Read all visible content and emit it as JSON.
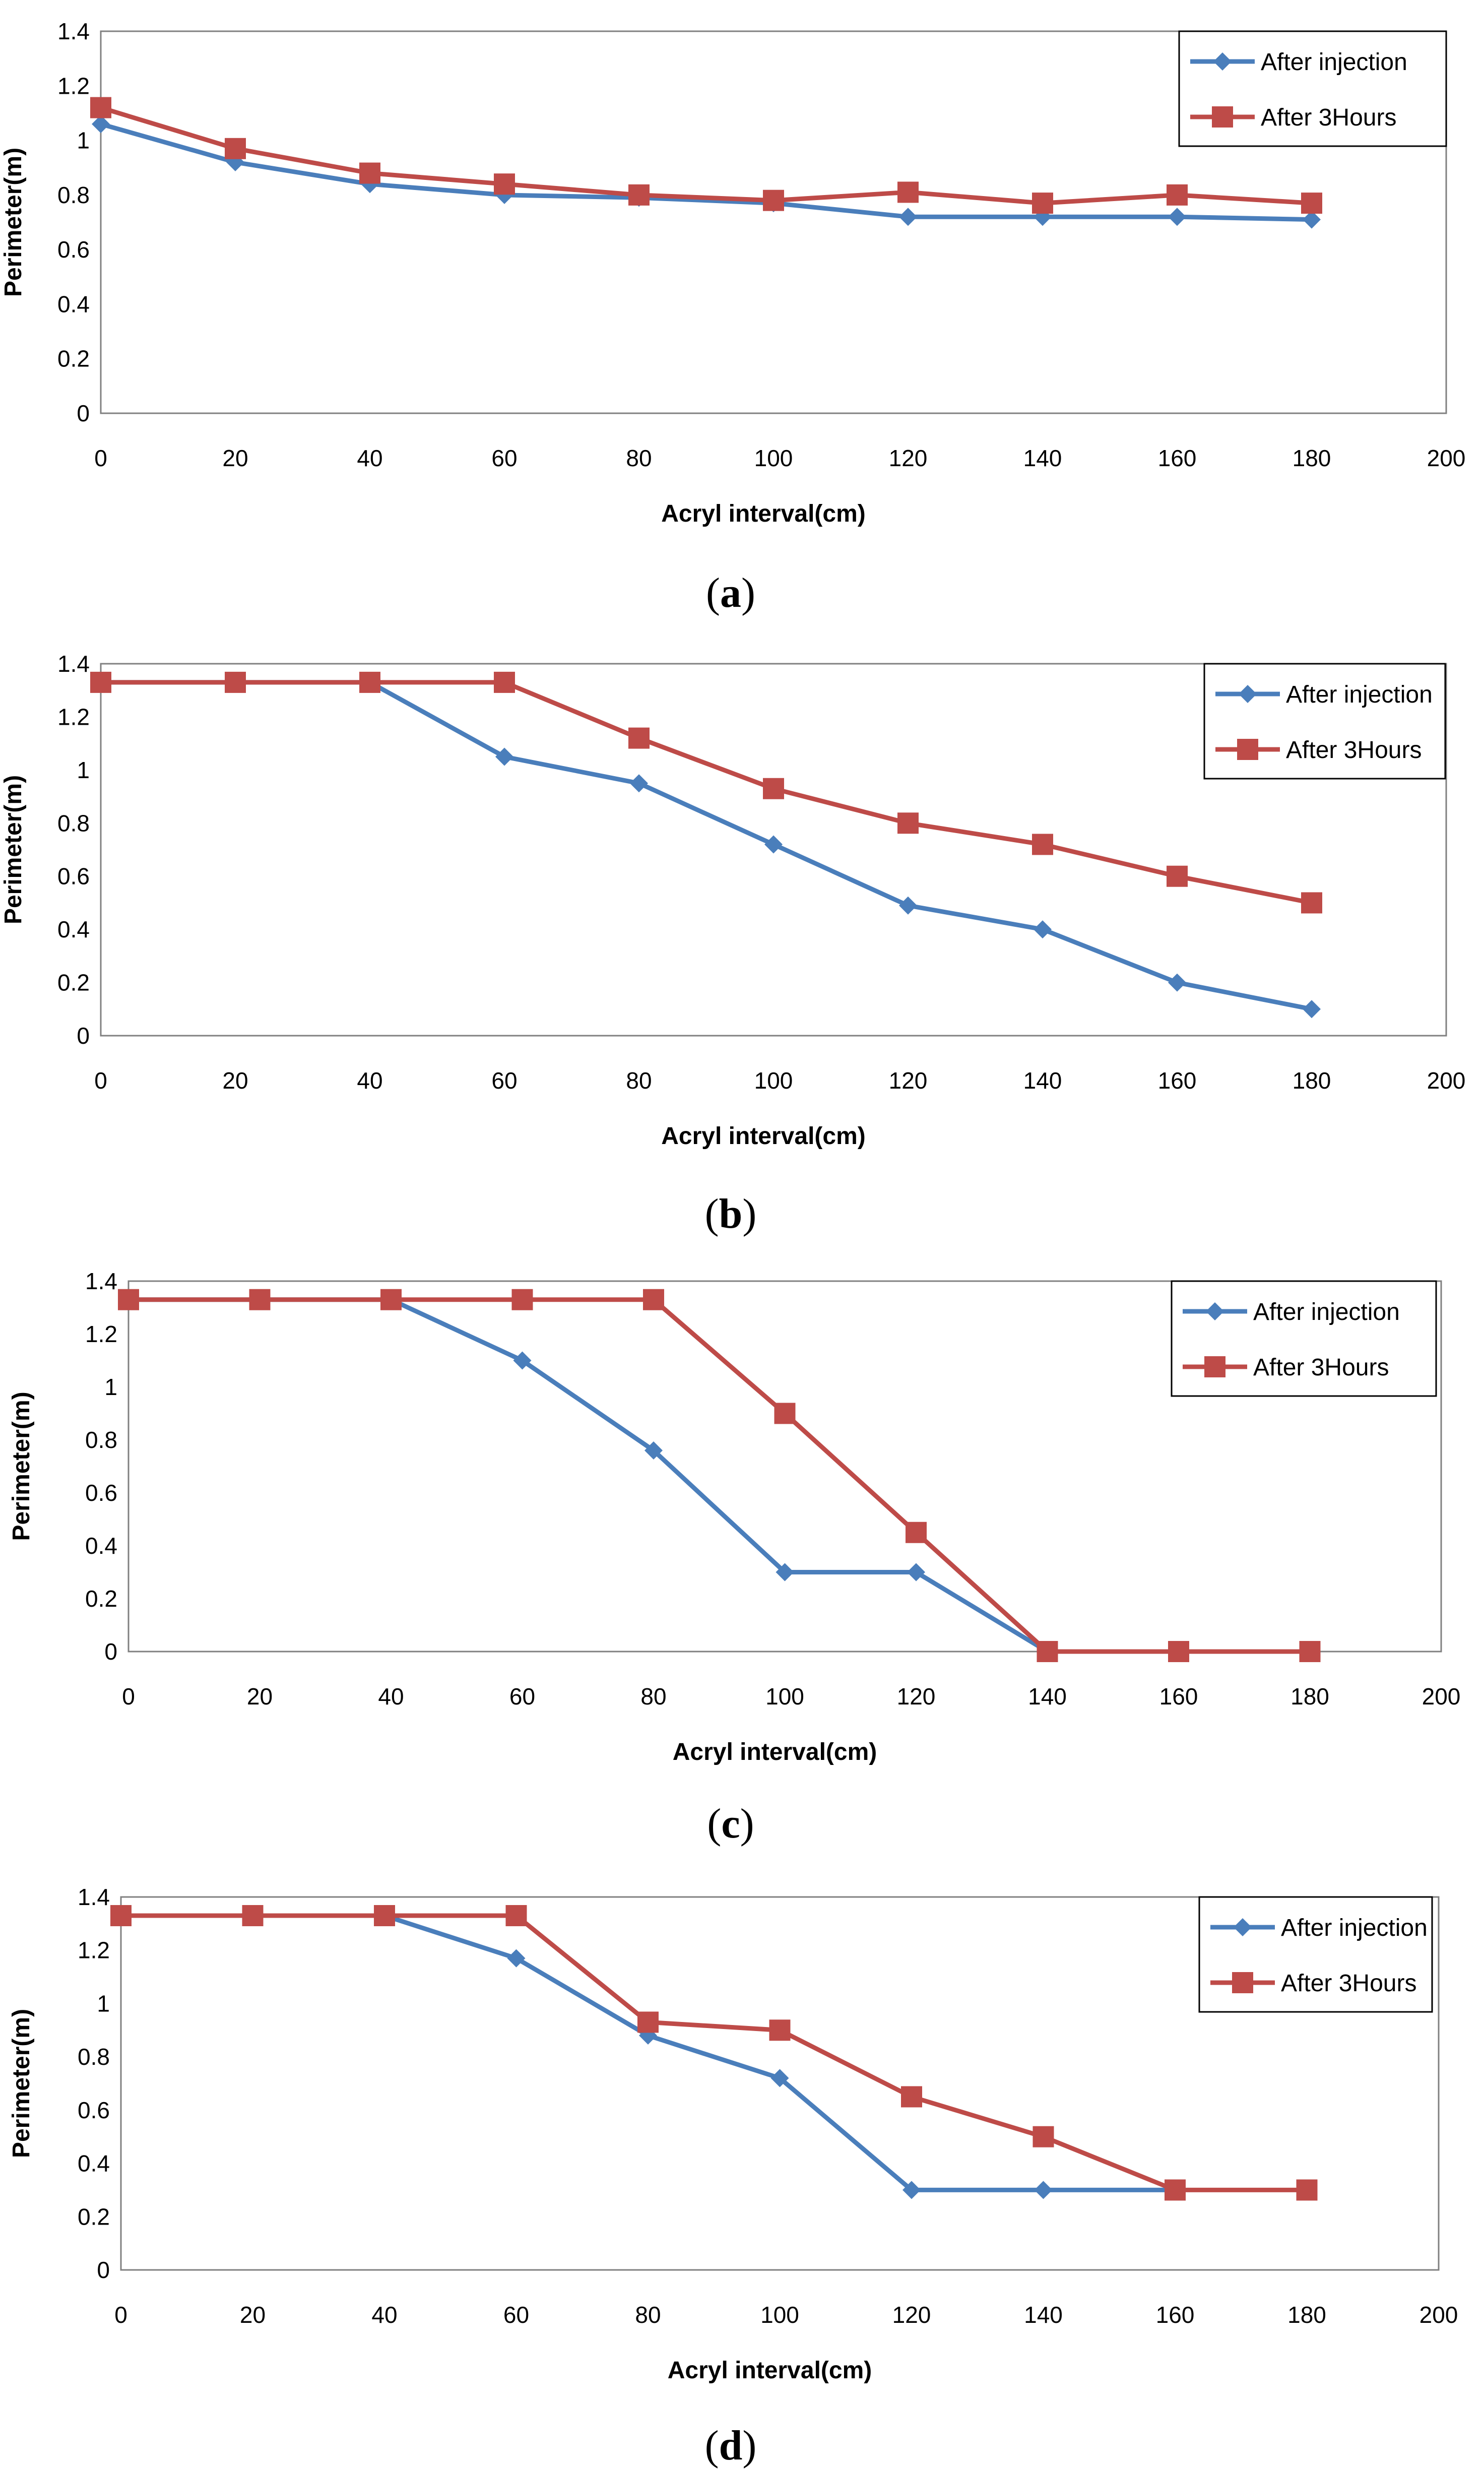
{
  "chart_data": [
    {
      "type": "line",
      "panel_label": "a",
      "xlabel": "Acryl interval(cm)",
      "ylabel": "Perimeter(m)",
      "xlim": [
        0,
        200
      ],
      "ylim": [
        0,
        1.4
      ],
      "x_ticks": [
        "0",
        "20",
        "40",
        "60",
        "80",
        "100",
        "120",
        "140",
        "160",
        "180",
        "200"
      ],
      "y_ticks": [
        "0",
        "0.2",
        "0.4",
        "0.6",
        "0.8",
        "1",
        "1.2",
        "1.4"
      ],
      "legend_position": "top-right",
      "x": [
        0,
        20,
        40,
        60,
        80,
        100,
        120,
        140,
        160,
        180
      ],
      "series": [
        {
          "name": "After injection",
          "color": "#4a7ebb",
          "marker": "diamond",
          "values": [
            1.06,
            0.92,
            0.84,
            0.8,
            0.79,
            0.77,
            0.72,
            0.72,
            0.72,
            0.71
          ]
        },
        {
          "name": "After 3Hours",
          "color": "#be4b48",
          "marker": "square",
          "values": [
            1.12,
            0.97,
            0.88,
            0.84,
            0.8,
            0.78,
            0.81,
            0.77,
            0.8,
            0.77
          ]
        }
      ]
    },
    {
      "type": "line",
      "panel_label": "b",
      "xlabel": "Acryl interval(cm)",
      "ylabel": "Perimeter(m)",
      "xlim": [
        0,
        200
      ],
      "ylim": [
        0,
        1.4
      ],
      "x_ticks": [
        "0",
        "20",
        "40",
        "60",
        "80",
        "100",
        "120",
        "140",
        "160",
        "180",
        "200"
      ],
      "y_ticks": [
        "0",
        "0.2",
        "0.4",
        "0.6",
        "0.8",
        "1",
        "1.2",
        "1.4"
      ],
      "legend_position": "top-right",
      "x": [
        0,
        20,
        40,
        60,
        80,
        100,
        120,
        140,
        160,
        180
      ],
      "series": [
        {
          "name": "After injection",
          "color": "#4a7ebb",
          "marker": "diamond",
          "values": [
            1.33,
            1.33,
            1.33,
            1.05,
            0.95,
            0.72,
            0.49,
            0.4,
            0.2,
            0.1
          ]
        },
        {
          "name": "After 3Hours",
          "color": "#be4b48",
          "marker": "square",
          "values": [
            1.33,
            1.33,
            1.33,
            1.33,
            1.12,
            0.93,
            0.8,
            0.72,
            0.6,
            0.5
          ]
        }
      ]
    },
    {
      "type": "line",
      "panel_label": "c",
      "xlabel": "Acryl interval(cm)",
      "ylabel": "Perimeter(m)",
      "xlim": [
        0,
        200
      ],
      "ylim": [
        0,
        1.4
      ],
      "x_ticks": [
        "0",
        "20",
        "40",
        "60",
        "80",
        "100",
        "120",
        "140",
        "160",
        "180",
        "200"
      ],
      "y_ticks": [
        "0",
        "0.2",
        "0.4",
        "0.6",
        "0.8",
        "1",
        "1.2",
        "1.4"
      ],
      "legend_position": "top-right",
      "x": [
        0,
        20,
        40,
        60,
        80,
        100,
        120,
        140,
        160,
        180
      ],
      "series": [
        {
          "name": "After injection",
          "color": "#4a7ebb",
          "marker": "diamond",
          "values": [
            1.33,
            1.33,
            1.33,
            1.1,
            0.76,
            0.3,
            0.3,
            0.0,
            null,
            null
          ]
        },
        {
          "name": "After 3Hours",
          "color": "#be4b48",
          "marker": "square",
          "values": [
            1.33,
            1.33,
            1.33,
            1.33,
            1.33,
            0.9,
            0.45,
            0.0,
            0.0,
            0.0
          ]
        }
      ]
    },
    {
      "type": "line",
      "panel_label": "d",
      "xlabel": "Acryl interval(cm)",
      "ylabel": "Perimeter(m)",
      "xlim": [
        0,
        200
      ],
      "ylim": [
        0,
        1.4
      ],
      "x_ticks": [
        "0",
        "20",
        "40",
        "60",
        "80",
        "100",
        "120",
        "140",
        "160",
        "180",
        "200"
      ],
      "y_ticks": [
        "0",
        "0.2",
        "0.4",
        "0.6",
        "0.8",
        "1",
        "1.2",
        "1.4"
      ],
      "legend_position": "top-right",
      "x": [
        0,
        20,
        40,
        60,
        80,
        100,
        120,
        140,
        160,
        180
      ],
      "series": [
        {
          "name": "After injection",
          "color": "#4a7ebb",
          "marker": "diamond",
          "values": [
            1.33,
            1.33,
            1.33,
            1.17,
            0.88,
            0.72,
            0.3,
            0.3,
            0.3,
            null
          ]
        },
        {
          "name": "After 3Hours",
          "color": "#be4b48",
          "marker": "square",
          "values": [
            1.33,
            1.33,
            1.33,
            1.33,
            0.93,
            0.9,
            0.65,
            0.5,
            0.3,
            0.3
          ]
        }
      ]
    }
  ]
}
